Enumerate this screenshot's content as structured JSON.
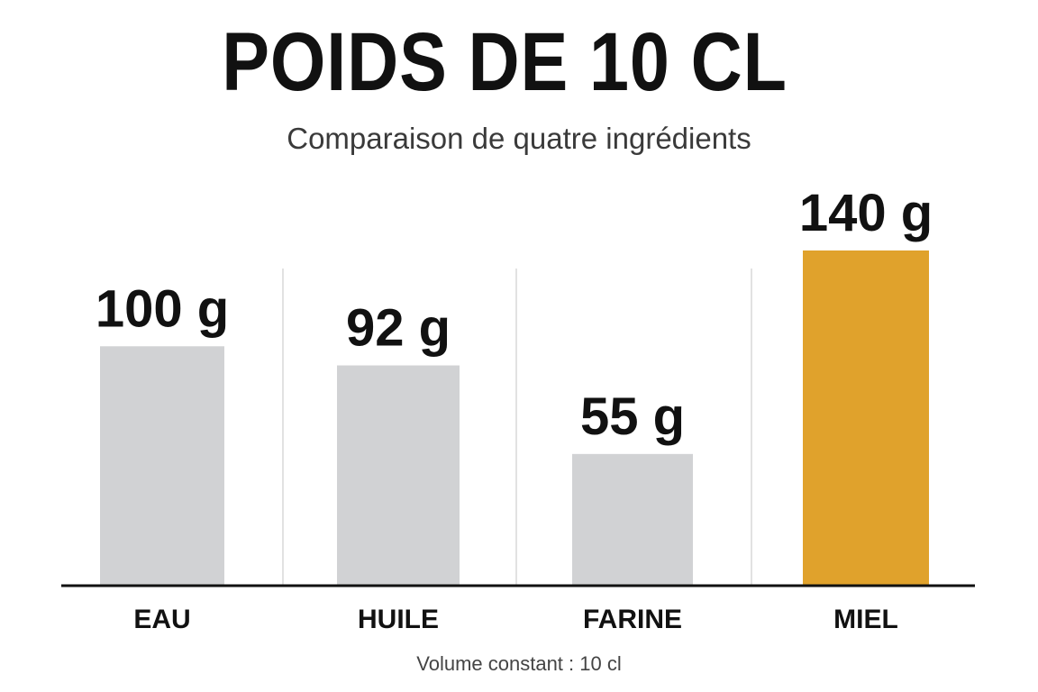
{
  "title": "POIDS DE 10 CL",
  "subtitle": "Comparaison de quatre ingrédients",
  "footnote": "Volume constant : 10 cl",
  "chart_data": {
    "type": "bar",
    "title": "POIDS DE 10 CL",
    "subtitle": "Comparaison de quatre ingrédients",
    "categories": [
      "EAU",
      "HUILE",
      "FARINE",
      "MIEL"
    ],
    "values": [
      100,
      92,
      55,
      140
    ],
    "value_labels": [
      "100 g",
      "92 g",
      "55 g",
      "140 g"
    ],
    "unit": "g",
    "ylim": [
      0,
      140
    ],
    "grid": false,
    "legend": "none",
    "colors": {
      "default_bar": "#d1d2d4",
      "highlight_bar": "#e0a22c",
      "baseline": "#111111",
      "separator": "#e2e2e2"
    },
    "highlight_index": 3
  }
}
